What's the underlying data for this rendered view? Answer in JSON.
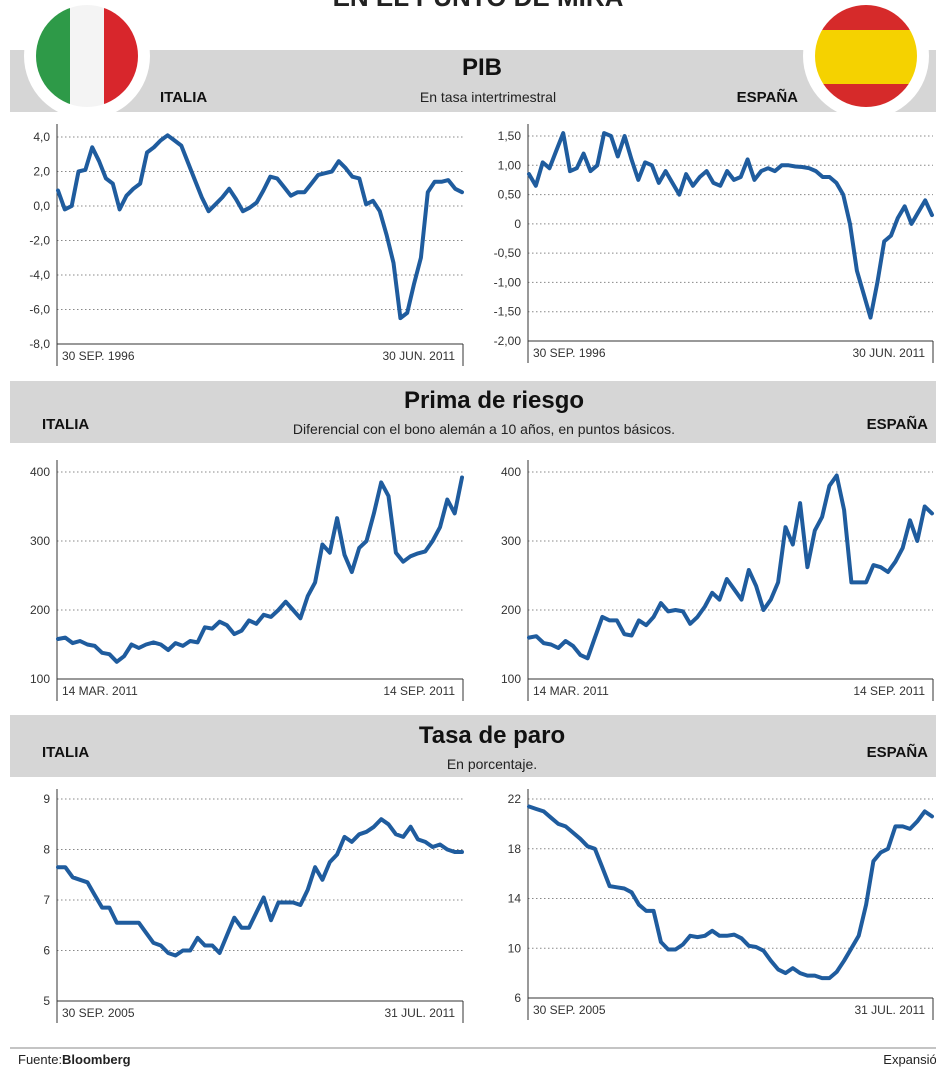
{
  "title": "EN EL PUNTO DE MIRA",
  "sections": [
    {
      "title": "PIB",
      "subtitle": "En tasa intertrimestral",
      "left": "ITALIA",
      "right": "ESPAÑA"
    },
    {
      "title": "Prima de riesgo",
      "subtitle": "Diferencial con el bono alemán a 10 años, en puntos básicos.",
      "left": "ITALIA",
      "right": "ESPAÑA"
    },
    {
      "title": "Tasa de paro",
      "subtitle": "En porcentaje.",
      "left": "ITALIA",
      "right": "ESPAÑA"
    }
  ],
  "source": {
    "label": "Fuente:",
    "name": "Bloomberg",
    "publisher": "Expansión"
  },
  "chart_data": [
    {
      "type": "line",
      "color": "#1f5c9e",
      "grid": true,
      "categories": [
        "30 SEP. 1996",
        null,
        null,
        null,
        null,
        null,
        null,
        null,
        null,
        null,
        null,
        null,
        null,
        null,
        null,
        null,
        null,
        null,
        null,
        null,
        null,
        null,
        null,
        null,
        null,
        null,
        null,
        null,
        null,
        null,
        null,
        null,
        null,
        null,
        null,
        null,
        null,
        null,
        null,
        null,
        null,
        null,
        null,
        null,
        null,
        null,
        null,
        null,
        null,
        null,
        null,
        null,
        null,
        null,
        null,
        null,
        null,
        null,
        null,
        "30 JUN. 2011"
      ],
      "values": [
        0.9,
        -0.2,
        0.0,
        2.0,
        2.1,
        3.4,
        2.6,
        1.6,
        1.3,
        -0.2,
        0.6,
        1.0,
        1.3,
        3.1,
        3.4,
        3.8,
        4.1,
        3.8,
        3.5,
        2.5,
        1.5,
        0.5,
        -0.3,
        0.1,
        0.5,
        1.0,
        0.4,
        -0.3,
        -0.1,
        0.2,
        0.9,
        1.7,
        1.6,
        1.1,
        0.6,
        0.8,
        0.8,
        1.3,
        1.8,
        1.9,
        2.0,
        2.6,
        2.2,
        1.7,
        1.6,
        0.1,
        0.3,
        -0.3,
        -1.7,
        -3.3,
        -6.5,
        -6.2,
        -4.5,
        -3.0,
        0.8,
        1.4,
        1.4,
        1.5,
        1.0,
        0.8
      ],
      "ylim": [
        -8,
        4
      ],
      "yticks": [
        {
          "value": 4,
          "label": "4,0"
        },
        {
          "value": 2,
          "label": "2,0"
        },
        {
          "value": 0,
          "label": "0,0"
        },
        {
          "value": -2,
          "label": "-2,0"
        },
        {
          "value": -4,
          "label": "-4,0"
        },
        {
          "value": -6,
          "label": "-6,0"
        },
        {
          "value": -8,
          "label": "-8,0"
        }
      ]
    },
    {
      "type": "line",
      "color": "#1f5c9e",
      "grid": true,
      "categories": [
        "30 SEP. 1996",
        null,
        null,
        null,
        null,
        null,
        null,
        null,
        null,
        null,
        null,
        null,
        null,
        null,
        null,
        null,
        null,
        null,
        null,
        null,
        null,
        null,
        null,
        null,
        null,
        null,
        null,
        null,
        null,
        null,
        null,
        null,
        null,
        null,
        null,
        null,
        null,
        null,
        null,
        null,
        null,
        null,
        null,
        null,
        null,
        null,
        null,
        null,
        null,
        null,
        null,
        null,
        null,
        null,
        null,
        null,
        null,
        null,
        null,
        "30 JUN. 2011"
      ],
      "values": [
        0.85,
        0.65,
        1.05,
        0.95,
        1.25,
        1.55,
        0.9,
        0.95,
        1.2,
        0.9,
        1.0,
        1.55,
        1.5,
        1.15,
        1.5,
        1.1,
        0.75,
        1.05,
        1.0,
        0.7,
        0.9,
        0.7,
        0.5,
        0.85,
        0.65,
        0.8,
        0.9,
        0.7,
        0.65,
        0.9,
        0.75,
        0.8,
        1.1,
        0.75,
        0.9,
        0.95,
        0.9,
        1.0,
        1.0,
        0.98,
        0.97,
        0.95,
        0.9,
        0.8,
        0.8,
        0.7,
        0.5,
        0.0,
        -0.8,
        -1.2,
        -1.6,
        -1.0,
        -0.3,
        -0.2,
        0.1,
        0.3,
        0.0,
        0.2,
        0.4,
        0.15
      ],
      "ylim": [
        -2,
        1.5
      ],
      "yticks": [
        {
          "value": 1.5,
          "label": "1,50"
        },
        {
          "value": 1,
          "label": "1,00"
        },
        {
          "value": 0.5,
          "label": "0,50"
        },
        0,
        {
          "value": -0.5,
          "label": "-0,50"
        },
        {
          "value": -1,
          "label": "-1,00"
        },
        {
          "value": -1.5,
          "label": "-1,50"
        },
        {
          "value": -2,
          "label": "-2,00"
        }
      ]
    },
    {
      "type": "line",
      "color": "#1f5c9e",
      "grid": true,
      "categories": [
        "14 MAR. 2011",
        null,
        null,
        null,
        null,
        null,
        null,
        null,
        null,
        null,
        null,
        null,
        null,
        null,
        null,
        null,
        null,
        null,
        null,
        null,
        null,
        null,
        null,
        null,
        null,
        null,
        null,
        null,
        null,
        null,
        null,
        null,
        null,
        null,
        null,
        null,
        null,
        null,
        null,
        null,
        null,
        null,
        null,
        null,
        null,
        null,
        null,
        null,
        null,
        null,
        null,
        null,
        null,
        null,
        null,
        "14 SEP. 2011"
      ],
      "values": [
        158,
        160,
        152,
        155,
        150,
        148,
        138,
        136,
        125,
        133,
        150,
        145,
        150,
        153,
        150,
        142,
        152,
        148,
        155,
        153,
        175,
        173,
        183,
        178,
        165,
        170,
        185,
        180,
        193,
        190,
        200,
        212,
        200,
        188,
        220,
        240,
        295,
        283,
        333,
        280,
        255,
        290,
        300,
        340,
        385,
        365,
        283,
        270,
        278,
        282,
        285,
        300,
        320,
        360,
        340,
        392
      ],
      "ylim": [
        100,
        400
      ],
      "yticks": [
        400,
        300,
        200,
        100
      ]
    },
    {
      "type": "line",
      "color": "#1f5c9e",
      "grid": true,
      "categories": [
        "14 MAR. 2011",
        null,
        null,
        null,
        null,
        null,
        null,
        null,
        null,
        null,
        null,
        null,
        null,
        null,
        null,
        null,
        null,
        null,
        null,
        null,
        null,
        null,
        null,
        null,
        null,
        null,
        null,
        null,
        null,
        null,
        null,
        null,
        null,
        null,
        null,
        null,
        null,
        null,
        null,
        null,
        null,
        null,
        null,
        null,
        null,
        null,
        null,
        null,
        null,
        null,
        null,
        null,
        null,
        null,
        null,
        "14 SEP. 2011"
      ],
      "values": [
        160,
        162,
        152,
        150,
        145,
        155,
        148,
        135,
        130,
        160,
        190,
        185,
        185,
        165,
        163,
        185,
        178,
        190,
        210,
        198,
        200,
        198,
        180,
        190,
        205,
        225,
        215,
        245,
        230,
        215,
        258,
        235,
        200,
        215,
        240,
        320,
        295,
        355,
        262,
        315,
        335,
        380,
        395,
        345,
        240,
        240,
        240,
        265,
        262,
        255,
        270,
        290,
        330,
        300,
        350,
        340
      ],
      "ylim": [
        100,
        400
      ],
      "yticks": [
        400,
        300,
        200,
        100
      ]
    },
    {
      "type": "line",
      "color": "#1f5c9e",
      "grid": true,
      "categories": [
        "30 SEP. 2005",
        null,
        null,
        null,
        null,
        null,
        null,
        null,
        null,
        null,
        null,
        null,
        null,
        null,
        null,
        null,
        null,
        null,
        null,
        null,
        null,
        null,
        null,
        null,
        null,
        null,
        null,
        null,
        null,
        null,
        null,
        null,
        null,
        null,
        null,
        null,
        null,
        null,
        null,
        null,
        null,
        null,
        null,
        null,
        null,
        null,
        null,
        null,
        null,
        null,
        null,
        null,
        null,
        null,
        null,
        "31 JUL. 2011"
      ],
      "values": [
        7.65,
        7.65,
        7.45,
        7.4,
        7.35,
        7.1,
        6.85,
        6.85,
        6.55,
        6.55,
        6.55,
        6.55,
        6.35,
        6.15,
        6.1,
        5.95,
        5.9,
        6.0,
        6.0,
        6.25,
        6.1,
        6.1,
        5.95,
        6.3,
        6.65,
        6.45,
        6.45,
        6.75,
        7.05,
        6.6,
        6.95,
        6.95,
        6.95,
        6.9,
        7.2,
        7.65,
        7.4,
        7.75,
        7.9,
        8.25,
        8.15,
        8.3,
        8.35,
        8.45,
        8.6,
        8.5,
        8.3,
        8.25,
        8.45,
        8.2,
        8.15,
        8.05,
        8.1,
        8.0,
        7.95,
        7.95
      ],
      "ylim": [
        5,
        9
      ],
      "yticks": [
        9,
        8,
        7,
        6,
        5
      ]
    },
    {
      "type": "line",
      "color": "#1f5c9e",
      "grid": true,
      "categories": [
        "30 SEP. 2005",
        null,
        null,
        null,
        null,
        null,
        null,
        null,
        null,
        null,
        null,
        null,
        null,
        null,
        null,
        null,
        null,
        null,
        null,
        null,
        null,
        null,
        null,
        null,
        null,
        null,
        null,
        null,
        null,
        null,
        null,
        null,
        null,
        null,
        null,
        null,
        null,
        null,
        null,
        null,
        null,
        null,
        null,
        null,
        null,
        null,
        null,
        null,
        null,
        null,
        null,
        null,
        null,
        null,
        null,
        "31 JUL. 2011"
      ],
      "values": [
        21.4,
        21.2,
        21.0,
        20.5,
        20.0,
        19.8,
        19.3,
        18.8,
        18.2,
        18.0,
        16.5,
        15.0,
        14.9,
        14.8,
        14.5,
        13.5,
        13.0,
        13.0,
        10.5,
        9.9,
        9.9,
        10.3,
        11.0,
        10.9,
        11.0,
        11.4,
        11.0,
        11.0,
        11.1,
        10.8,
        10.2,
        10.1,
        9.8,
        9.0,
        8.3,
        8.0,
        8.4,
        8.0,
        7.8,
        7.8,
        7.6,
        7.6,
        8.1,
        9.0,
        10.0,
        11.0,
        13.5,
        17.0,
        17.7,
        18.0,
        19.8,
        19.8,
        19.6,
        20.2,
        21.0,
        20.6
      ],
      "ylim": [
        6,
        22
      ],
      "yticks": [
        22,
        18,
        14,
        10,
        6
      ]
    }
  ]
}
